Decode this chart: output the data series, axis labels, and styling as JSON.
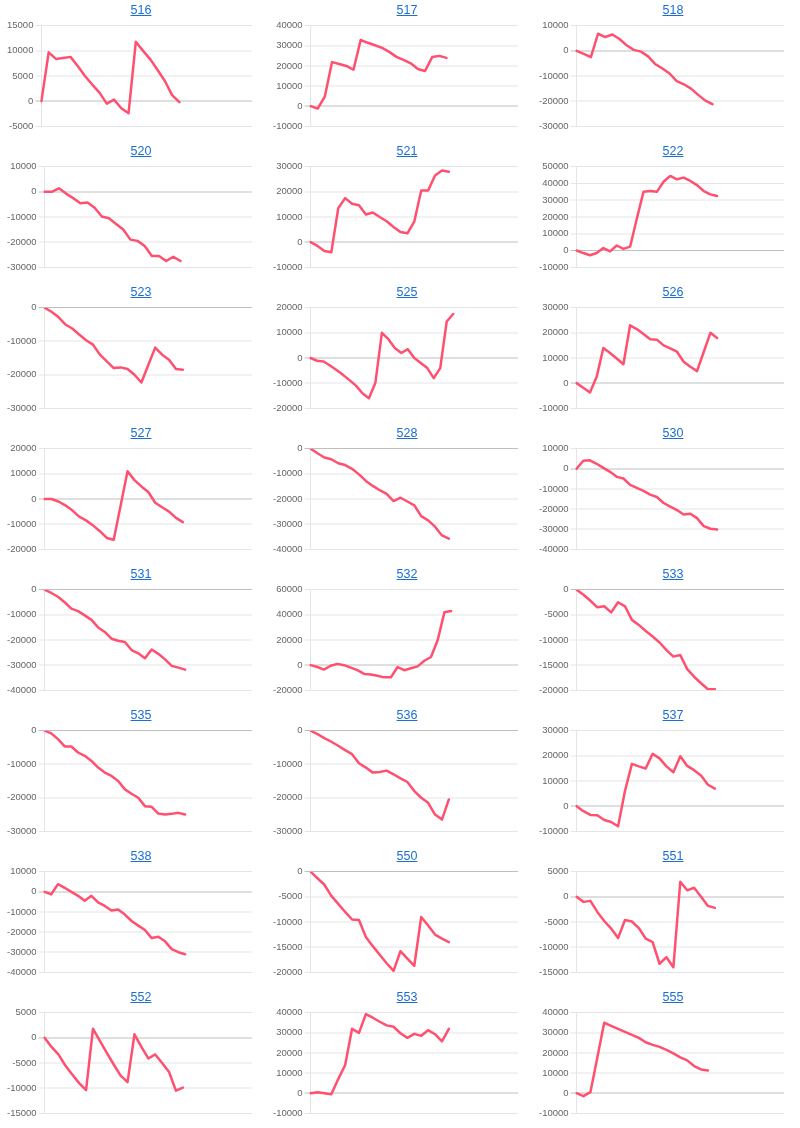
{
  "chart_data": [
    {
      "type": "line",
      "title": "516",
      "categories": [
        null,
        null,
        null,
        null,
        null,
        null,
        null,
        null,
        null,
        null,
        null,
        null,
        null,
        null,
        null,
        null,
        null,
        null,
        null,
        null,
        null,
        null,
        null,
        null,
        null,
        null,
        null,
        null,
        null,
        null
      ],
      "values": [
        0,
        9700,
        8400,
        8600,
        8800,
        7000,
        5000,
        3300,
        1700,
        -500,
        300,
        -1400,
        -2400,
        11800,
        10000,
        8300,
        6200,
        4000,
        1200,
        -200,
        null,
        null,
        null,
        null,
        null,
        null,
        null,
        null,
        null,
        null
      ],
      "color": "#ff5070",
      "ylim": [
        -5000,
        15000
      ],
      "yticks": [
        -5000,
        0,
        5000,
        10000,
        15000
      ],
      "grid": "y",
      "tick_labels": "y"
    },
    {
      "type": "line",
      "title": "517",
      "categories": [
        null,
        null,
        null,
        null,
        null,
        null,
        null,
        null,
        null,
        null,
        null,
        null,
        null,
        null,
        null,
        null,
        null,
        null,
        null,
        null,
        null,
        null,
        null,
        null,
        null,
        null,
        null,
        null,
        null,
        null
      ],
      "values": [
        0,
        -1200,
        4900,
        21900,
        21000,
        20000,
        18100,
        32900,
        31500,
        30300,
        29000,
        27000,
        24500,
        23000,
        21300,
        18500,
        17500,
        24400,
        25000,
        24000,
        null,
        null,
        null,
        null,
        null,
        null,
        null,
        null,
        null,
        null
      ],
      "color": "#ff5070",
      "ylim": [
        -10000,
        40000
      ],
      "yticks": [
        -10000,
        0,
        10000,
        20000,
        30000,
        40000
      ],
      "grid": "y",
      "tick_labels": "y"
    },
    {
      "type": "line",
      "title": "518",
      "categories": [
        null,
        null,
        null,
        null,
        null,
        null,
        null,
        null,
        null,
        null,
        null,
        null,
        null,
        null,
        null,
        null,
        null,
        null,
        null,
        null,
        null,
        null,
        null,
        null,
        null,
        null,
        null,
        null,
        null,
        null
      ],
      "values": [
        0,
        -1200,
        -2500,
        6800,
        5500,
        6500,
        4700,
        2200,
        400,
        -300,
        -2200,
        -5300,
        -7000,
        -9000,
        -12000,
        -13300,
        -15000,
        -17500,
        -19800,
        -21200,
        null,
        null,
        null,
        null,
        null,
        null,
        null,
        null,
        null,
        null
      ],
      "color": "#ff5070",
      "ylim": [
        -30000,
        10000
      ],
      "yticks": [
        -30000,
        -20000,
        -10000,
        0,
        10000
      ],
      "grid": "y",
      "tick_labels": "y"
    },
    {
      "type": "line",
      "title": "520",
      "categories": [
        null,
        null,
        null,
        null,
        null,
        null,
        null,
        null,
        null,
        null,
        null,
        null,
        null,
        null,
        null,
        null,
        null,
        null,
        null,
        null,
        null,
        null,
        null,
        null,
        null,
        null,
        null,
        null,
        null,
        null
      ],
      "values": [
        0,
        0,
        1400,
        -700,
        -2500,
        -4500,
        -4200,
        -6300,
        -9800,
        -10500,
        -12800,
        -15000,
        -19000,
        -19500,
        -21500,
        -25500,
        -25500,
        -27500,
        -25800,
        -27500,
        null,
        null,
        null,
        null,
        null,
        null,
        null,
        null,
        null,
        null
      ],
      "color": "#ff5070",
      "ylim": [
        -30000,
        10000
      ],
      "yticks": [
        -30000,
        -20000,
        -10000,
        0,
        10000
      ],
      "grid": "y",
      "tick_labels": "y"
    },
    {
      "type": "line",
      "title": "521",
      "categories": [
        null,
        null,
        null,
        null,
        null,
        null,
        null,
        null,
        null,
        null,
        null,
        null,
        null,
        null,
        null,
        null,
        null,
        null,
        null,
        null,
        null,
        null,
        null,
        null,
        null,
        null,
        null,
        null,
        null,
        null,
        null
      ],
      "values": [
        0,
        -1500,
        -3500,
        -4000,
        13500,
        17500,
        15300,
        14700,
        11000,
        11800,
        10000,
        8300,
        6000,
        4000,
        3500,
        8200,
        20500,
        20500,
        26500,
        28500,
        28000,
        null,
        null,
        null,
        null,
        null,
        null,
        null,
        null,
        null,
        null
      ],
      "color": "#ff5070",
      "ylim": [
        -10000,
        30000
      ],
      "yticks": [
        -10000,
        0,
        10000,
        20000,
        30000
      ],
      "grid": "y",
      "tick_labels": "y"
    },
    {
      "type": "line",
      "title": "522",
      "categories": [
        null,
        null,
        null,
        null,
        null,
        null,
        null,
        null,
        null,
        null,
        null,
        null,
        null,
        null,
        null,
        null,
        null,
        null,
        null,
        null,
        null,
        null,
        null,
        null,
        null,
        null,
        null,
        null,
        null,
        null,
        null,
        null
      ],
      "values": [
        0,
        -1500,
        -2800,
        -1500,
        1500,
        -500,
        3000,
        1000,
        2300,
        19000,
        35000,
        35500,
        35000,
        41000,
        44500,
        42500,
        43500,
        41500,
        39000,
        35500,
        33500,
        32500,
        null,
        null,
        null,
        null,
        null,
        null,
        null,
        null,
        null,
        null
      ],
      "color": "#ff5070",
      "ylim": [
        -10000,
        50000
      ],
      "yticks": [
        -10000,
        0,
        10000,
        20000,
        30000,
        40000,
        50000
      ],
      "grid": "y",
      "tick_labels": "y"
    },
    {
      "type": "line",
      "title": "523",
      "categories": [
        null,
        null,
        null,
        null,
        null,
        null,
        null,
        null,
        null,
        null,
        null,
        null,
        null,
        null,
        null,
        null,
        null,
        null,
        null,
        null,
        null,
        null,
        null,
        null,
        null,
        null,
        null,
        null,
        null,
        null,
        null
      ],
      "values": [
        0,
        -1200,
        -2800,
        -5000,
        -6200,
        -8000,
        -9700,
        -11000,
        -14000,
        -16000,
        -18000,
        -17800,
        -18300,
        -20000,
        -22300,
        -17100,
        -11900,
        -14000,
        -15500,
        -18300,
        -18500,
        null,
        null,
        null,
        null,
        null,
        null,
        null,
        null,
        null,
        null
      ],
      "color": "#ff5070",
      "ylim": [
        -30000,
        0
      ],
      "yticks": [
        -30000,
        -20000,
        -10000,
        0
      ],
      "grid": "y",
      "tick_labels": "y"
    },
    {
      "type": "line",
      "title": "525",
      "categories": [
        null,
        null,
        null,
        null,
        null,
        null,
        null,
        null,
        null,
        null,
        null,
        null,
        null,
        null,
        null,
        null,
        null,
        null,
        null,
        null,
        null,
        null,
        null,
        null,
        null,
        null,
        null,
        null,
        null,
        null,
        null,
        null,
        null
      ],
      "values": [
        0,
        -1100,
        -1400,
        -3000,
        -4800,
        -6700,
        -8800,
        -11000,
        -14000,
        -16000,
        -9800,
        10000,
        7500,
        4000,
        2000,
        3500,
        0,
        -2000,
        -4000,
        -8000,
        -4000,
        14500,
        17500,
        null,
        null,
        null,
        null,
        null,
        null,
        null,
        null,
        null,
        null
      ],
      "color": "#ff5070",
      "ylim": [
        -20000,
        20000
      ],
      "yticks": [
        -20000,
        -10000,
        0,
        10000,
        20000
      ],
      "grid": "y",
      "tick_labels": "y"
    },
    {
      "type": "line",
      "title": "526",
      "categories": [
        null,
        null,
        null,
        null,
        null,
        null,
        null,
        null,
        null,
        null,
        null,
        null,
        null,
        null,
        null,
        null,
        null,
        null,
        null,
        null,
        null,
        null,
        null,
        null,
        null,
        null,
        null,
        null,
        null,
        null,
        null,
        null
      ],
      "values": [
        0,
        -1800,
        -3700,
        2500,
        14000,
        12000,
        9800,
        7500,
        23000,
        21500,
        19500,
        17500,
        17300,
        15000,
        13800,
        12500,
        8500,
        6500,
        4800,
        12400,
        20000,
        18000,
        null,
        null,
        null,
        null,
        null,
        null,
        null,
        null,
        null,
        null
      ],
      "color": "#ff5070",
      "ylim": [
        -10000,
        30000
      ],
      "yticks": [
        -10000,
        0,
        10000,
        20000,
        30000
      ],
      "grid": "y",
      "tick_labels": "y"
    },
    {
      "type": "line",
      "title": "527",
      "categories": [
        null,
        null,
        null,
        null,
        null,
        null,
        null,
        null,
        null,
        null,
        null,
        null,
        null,
        null,
        null,
        null,
        null,
        null,
        null,
        null,
        null,
        null,
        null,
        null,
        null,
        null,
        null,
        null,
        null,
        null,
        null
      ],
      "values": [
        0,
        0,
        -1000,
        -2500,
        -4500,
        -7000,
        -8500,
        -10500,
        -12800,
        -15500,
        -16200,
        -2600,
        11000,
        7500,
        5000,
        2800,
        -1500,
        -3300,
        -5000,
        -7500,
        -9200,
        null,
        null,
        null,
        null,
        null,
        null,
        null,
        null,
        null,
        null
      ],
      "color": "#ff5070",
      "ylim": [
        -20000,
        20000
      ],
      "yticks": [
        -20000,
        -10000,
        0,
        10000,
        20000
      ],
      "grid": "y",
      "tick_labels": "y"
    },
    {
      "type": "line",
      "title": "528",
      "categories": [
        null,
        null,
        null,
        null,
        null,
        null,
        null,
        null,
        null,
        null,
        null,
        null,
        null,
        null,
        null,
        null,
        null,
        null,
        null,
        null,
        null,
        null,
        null,
        null,
        null,
        null,
        null,
        null,
        null,
        null,
        null
      ],
      "values": [
        0,
        -1800,
        -3500,
        -4200,
        -5800,
        -6500,
        -8000,
        -10200,
        -12800,
        -14800,
        -16500,
        -18000,
        -20800,
        -19500,
        -21000,
        -22500,
        -26800,
        -28500,
        -31000,
        -34500,
        -35800,
        null,
        null,
        null,
        null,
        null,
        null,
        null,
        null,
        null,
        null
      ],
      "color": "#ff5070",
      "ylim": [
        -40000,
        0
      ],
      "yticks": [
        -40000,
        -30000,
        -20000,
        -10000,
        0
      ],
      "grid": "y",
      "tick_labels": "y"
    },
    {
      "type": "line",
      "title": "530",
      "categories": [
        null,
        null,
        null,
        null,
        null,
        null,
        null,
        null,
        null,
        null,
        null,
        null,
        null,
        null,
        null,
        null,
        null,
        null,
        null,
        null,
        null,
        null,
        null,
        null,
        null,
        null,
        null,
        null,
        null,
        null,
        null,
        null
      ],
      "values": [
        0,
        4000,
        4200,
        2500,
        500,
        -1500,
        -4000,
        -4800,
        -8000,
        -9500,
        -11000,
        -12800,
        -14000,
        -17000,
        -18800,
        -20500,
        -22700,
        -22300,
        -24500,
        -28500,
        -29800,
        -30200,
        null,
        null,
        null,
        null,
        null,
        null,
        null,
        null,
        null,
        null
      ],
      "color": "#ff5070",
      "ylim": [
        -40000,
        10000
      ],
      "yticks": [
        -40000,
        -30000,
        -20000,
        -10000,
        0,
        10000
      ],
      "grid": "y",
      "tick_labels": "y"
    },
    {
      "type": "line",
      "title": "531",
      "categories": [
        null,
        null,
        null,
        null,
        null,
        null,
        null,
        null,
        null,
        null,
        null,
        null,
        null,
        null,
        null,
        null,
        null,
        null,
        null,
        null,
        null,
        null,
        null,
        null,
        null,
        null,
        null,
        null,
        null,
        null,
        null,
        null
      ],
      "values": [
        0,
        -1300,
        -2800,
        -5000,
        -7500,
        -8500,
        -10200,
        -12000,
        -15000,
        -16800,
        -19500,
        -20300,
        -20800,
        -24000,
        -25300,
        -27300,
        -23800,
        -25500,
        -27700,
        -30300,
        -31000,
        -31800,
        null,
        null,
        null,
        null,
        null,
        null,
        null,
        null,
        null,
        null
      ],
      "color": "#ff5070",
      "ylim": [
        -40000,
        0
      ],
      "yticks": [
        -40000,
        -30000,
        -20000,
        -10000,
        0
      ],
      "grid": "y",
      "tick_labels": "y"
    },
    {
      "type": "line",
      "title": "532",
      "categories": [
        null,
        null,
        null,
        null,
        null,
        null,
        null,
        null,
        null,
        null,
        null,
        null,
        null,
        null,
        null,
        null,
        null,
        null,
        null,
        null,
        null,
        null,
        null,
        null,
        null,
        null,
        null,
        null,
        null,
        null,
        null,
        null
      ],
      "values": [
        0,
        -1500,
        -3500,
        -500,
        1000,
        0,
        -2000,
        -4000,
        -7000,
        -7500,
        -8500,
        -9700,
        -9700,
        -1500,
        -4000,
        -2500,
        -1000,
        3500,
        6500,
        20000,
        42000,
        43000,
        null,
        null,
        null,
        null,
        null,
        null,
        null,
        null,
        null,
        null
      ],
      "color": "#ff5070",
      "ylim": [
        -20000,
        60000
      ],
      "yticks": [
        -20000,
        0,
        20000,
        40000,
        60000
      ],
      "grid": "y",
      "tick_labels": "y"
    },
    {
      "type": "line",
      "title": "533",
      "categories": [
        null,
        null,
        null,
        null,
        null,
        null,
        null,
        null,
        null,
        null,
        null,
        null,
        null,
        null,
        null,
        null,
        null,
        null,
        null,
        null,
        null,
        null,
        null,
        null,
        null,
        null,
        null,
        null,
        null,
        null,
        null
      ],
      "values": [
        0,
        -1000,
        -2200,
        -3500,
        -3300,
        -4500,
        -2500,
        -3300,
        -6000,
        -7000,
        -8200,
        -9300,
        -10500,
        -12000,
        -13300,
        -13000,
        -15800,
        -17300,
        -18600,
        -19800,
        -19800,
        null,
        null,
        null,
        null,
        null,
        null,
        null,
        null,
        null,
        null
      ],
      "color": "#ff5070",
      "ylim": [
        -20000,
        0
      ],
      "yticks": [
        -20000,
        -15000,
        -10000,
        -5000,
        0
      ],
      "grid": "y",
      "tick_labels": "y"
    },
    {
      "type": "line",
      "title": "535",
      "categories": [
        null,
        null,
        null,
        null,
        null,
        null,
        null,
        null,
        null,
        null,
        null,
        null,
        null,
        null,
        null,
        null,
        null,
        null,
        null,
        null,
        null,
        null,
        null,
        null,
        null,
        null,
        null,
        null,
        null,
        null,
        null,
        null
      ],
      "values": [
        0,
        -800,
        -2500,
        -4700,
        -4700,
        -6500,
        -7500,
        -9000,
        -11000,
        -12500,
        -13500,
        -15000,
        -17500,
        -18800,
        -20000,
        -22500,
        -22700,
        -24700,
        -25000,
        -24800,
        -24500,
        -25000,
        null,
        null,
        null,
        null,
        null,
        null,
        null,
        null,
        null,
        null
      ],
      "color": "#ff5070",
      "ylim": [
        -30000,
        0
      ],
      "yticks": [
        -30000,
        -20000,
        -10000,
        0
      ],
      "grid": "y",
      "tick_labels": "y"
    },
    {
      "type": "line",
      "title": "536",
      "categories": [
        null,
        null,
        null,
        null,
        null,
        null,
        null,
        null,
        null,
        null,
        null,
        null,
        null,
        null,
        null,
        null,
        null,
        null,
        null,
        null,
        null,
        null,
        null,
        null,
        null,
        null,
        null,
        null,
        null,
        null,
        null
      ],
      "values": [
        0,
        -1000,
        -2200,
        -3300,
        -4500,
        -5800,
        -7000,
        -9700,
        -11000,
        -12500,
        -12300,
        -11900,
        -13000,
        -14200,
        -15300,
        -18000,
        -20000,
        -21500,
        -25000,
        -26500,
        -20500,
        null,
        null,
        null,
        null,
        null,
        null,
        null,
        null,
        null,
        null
      ],
      "color": "#ff5070",
      "ylim": [
        -30000,
        0
      ],
      "yticks": [
        -30000,
        -20000,
        -10000,
        0
      ],
      "grid": "y",
      "tick_labels": "y"
    },
    {
      "type": "line",
      "title": "537",
      "categories": [
        null,
        null,
        null,
        null,
        null,
        null,
        null,
        null,
        null,
        null,
        null,
        null,
        null,
        null,
        null,
        null,
        null,
        null,
        null,
        null,
        null,
        null,
        null,
        null,
        null,
        null,
        null,
        null,
        null,
        null,
        null
      ],
      "values": [
        0,
        -2000,
        -3500,
        -3600,
        -5500,
        -6300,
        -8000,
        6000,
        16800,
        15800,
        15000,
        20800,
        19000,
        15800,
        13500,
        19800,
        16000,
        14300,
        12200,
        8500,
        7000,
        null,
        null,
        null,
        null,
        null,
        null,
        null,
        null,
        null,
        null
      ],
      "color": "#ff5070",
      "ylim": [
        -10000,
        30000
      ],
      "yticks": [
        -10000,
        0,
        10000,
        20000,
        30000
      ],
      "grid": "y",
      "tick_labels": "y"
    },
    {
      "type": "line",
      "title": "538",
      "categories": [
        null,
        null,
        null,
        null,
        null,
        null,
        null,
        null,
        null,
        null,
        null,
        null,
        null,
        null,
        null,
        null,
        null,
        null,
        null,
        null,
        null,
        null,
        null,
        null,
        null,
        null,
        null,
        null,
        null,
        null,
        null,
        null
      ],
      "values": [
        0,
        -1200,
        3800,
        2000,
        0,
        -2000,
        -4500,
        -2000,
        -5300,
        -7000,
        -9300,
        -8800,
        -11300,
        -14500,
        -16800,
        -19000,
        -23000,
        -22300,
        -24600,
        -28500,
        -30000,
        -31000,
        null,
        null,
        null,
        null,
        null,
        null,
        null,
        null,
        null,
        null
      ],
      "color": "#ff5070",
      "ylim": [
        -40000,
        10000
      ],
      "yticks": [
        -40000,
        -30000,
        -20000,
        -10000,
        0,
        10000
      ],
      "grid": "y",
      "tick_labels": "y"
    },
    {
      "type": "line",
      "title": "550",
      "categories": [
        null,
        null,
        null,
        null,
        null,
        null,
        null,
        null,
        null,
        null,
        null,
        null,
        null,
        null,
        null,
        null,
        null,
        null,
        null,
        null,
        null,
        null,
        null,
        null,
        null,
        null,
        null,
        null,
        null,
        null,
        null
      ],
      "values": [
        0,
        -1300,
        -2600,
        -4800,
        -6400,
        -8000,
        -9500,
        -9600,
        -13000,
        -14800,
        -16500,
        -18200,
        -19700,
        -15800,
        -17300,
        -18700,
        -9000,
        -10700,
        -12500,
        -13300,
        -14000,
        null,
        null,
        null,
        null,
        null,
        null,
        null,
        null,
        null,
        null
      ],
      "color": "#ff5070",
      "ylim": [
        -20000,
        0
      ],
      "yticks": [
        -20000,
        -15000,
        -10000,
        -5000,
        0
      ],
      "grid": "y",
      "tick_labels": "y"
    },
    {
      "type": "line",
      "title": "551",
      "categories": [
        null,
        null,
        null,
        null,
        null,
        null,
        null,
        null,
        null,
        null,
        null,
        null,
        null,
        null,
        null,
        null,
        null,
        null,
        null,
        null,
        null,
        null,
        null,
        null,
        null,
        null,
        null,
        null,
        null,
        null,
        null
      ],
      "values": [
        0,
        -1000,
        -800,
        -3000,
        -4800,
        -6300,
        -8200,
        -4600,
        -4900,
        -6200,
        -8300,
        -9000,
        -13300,
        -12000,
        -14000,
        3000,
        1300,
        1800,
        0,
        -1800,
        -2200,
        null,
        null,
        null,
        null,
        null,
        null,
        null,
        null,
        null,
        null
      ],
      "color": "#ff5070",
      "ylim": [
        -15000,
        5000
      ],
      "yticks": [
        -15000,
        -10000,
        -5000,
        0,
        5000
      ],
      "grid": "y",
      "tick_labels": "y"
    },
    {
      "type": "line",
      "title": "552",
      "categories": [
        null,
        null,
        null,
        null,
        null,
        null,
        null,
        null,
        null,
        null,
        null,
        null,
        null,
        null,
        null,
        null,
        null,
        null,
        null,
        null,
        null,
        null,
        null,
        null,
        null,
        null,
        null,
        null,
        null,
        null,
        null
      ],
      "values": [
        0,
        -1800,
        -3300,
        -5500,
        -7300,
        -9000,
        -10400,
        1800,
        -600,
        -3000,
        -5300,
        -7500,
        -8800,
        700,
        -1800,
        -4100,
        -3300,
        -5000,
        -6800,
        -10500,
        -9900,
        null,
        null,
        null,
        null,
        null,
        null,
        null,
        null,
        null,
        null
      ],
      "color": "#ff5070",
      "ylim": [
        -15000,
        5000
      ],
      "yticks": [
        -15000,
        -10000,
        -5000,
        0,
        5000
      ],
      "grid": "y",
      "tick_labels": "y"
    },
    {
      "type": "line",
      "title": "553",
      "categories": [
        null,
        null,
        null,
        null,
        null,
        null,
        null,
        null,
        null,
        null,
        null,
        null,
        null,
        null,
        null,
        null,
        null,
        null,
        null,
        null,
        null,
        null,
        null,
        null,
        null,
        null,
        null,
        null,
        null,
        null,
        null
      ],
      "values": [
        0,
        500,
        0,
        -500,
        7000,
        14000,
        32000,
        30000,
        39300,
        37500,
        35500,
        33700,
        33000,
        29800,
        27500,
        29500,
        28500,
        31300,
        29300,
        25800,
        32000,
        null,
        null,
        null,
        null,
        null,
        null,
        null,
        null,
        null,
        null
      ],
      "color": "#ff5070",
      "ylim": [
        -10000,
        40000
      ],
      "yticks": [
        -10000,
        0,
        10000,
        20000,
        30000,
        40000
      ],
      "grid": "y",
      "tick_labels": "y"
    },
    {
      "type": "line",
      "title": "555",
      "categories": [
        null,
        null,
        null,
        null,
        null,
        null,
        null,
        null,
        null,
        null,
        null,
        null,
        null,
        null,
        null,
        null,
        null,
        null,
        null,
        null,
        null,
        null,
        null,
        null,
        null,
        null,
        null,
        null,
        null,
        null,
        null
      ],
      "values": [
        0,
        -1500,
        500,
        17700,
        35000,
        33500,
        32000,
        30500,
        29000,
        27500,
        25300,
        24000,
        23000,
        21500,
        19800,
        17800,
        16300,
        13500,
        11800,
        11300,
        null,
        null,
        null,
        null,
        null,
        null,
        null,
        null,
        null,
        null,
        null
      ],
      "color": "#ff5070",
      "ylim": [
        -10000,
        40000
      ],
      "yticks": [
        -10000,
        0,
        10000,
        20000,
        30000,
        40000
      ],
      "grid": "y",
      "tick_labels": "y"
    }
  ]
}
